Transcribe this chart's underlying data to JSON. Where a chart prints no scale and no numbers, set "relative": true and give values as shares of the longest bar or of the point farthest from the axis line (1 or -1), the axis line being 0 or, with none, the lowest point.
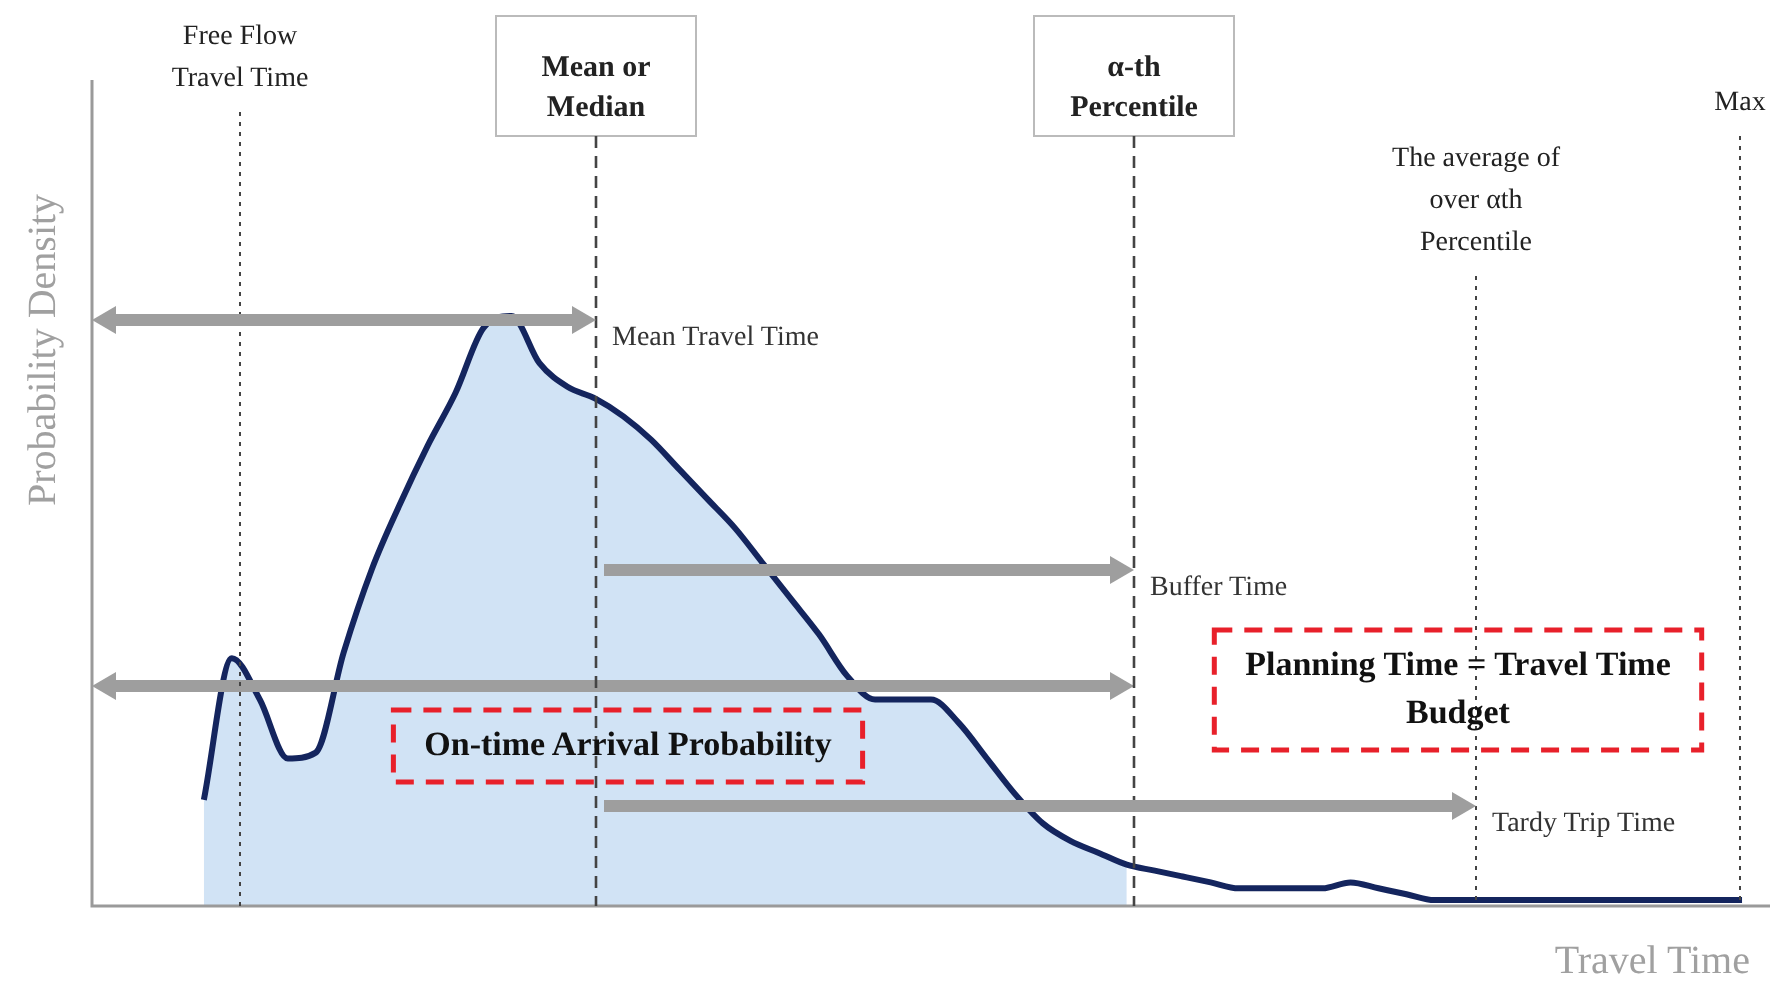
{
  "chart_data": {
    "type": "line",
    "relative": true,
    "xlabel": "Travel Time",
    "ylabel": "Probability Density",
    "categories": [
      null,
      null,
      null,
      null,
      null,
      null,
      null,
      null,
      null,
      null,
      null,
      null,
      null,
      null,
      null,
      null,
      null,
      null,
      null,
      null,
      null,
      null,
      null,
      null,
      null,
      null,
      null,
      null,
      null,
      null,
      null,
      null,
      null,
      null,
      null,
      null,
      null,
      null,
      null,
      null,
      null,
      null,
      null,
      null,
      null,
      null,
      null,
      null,
      null,
      null,
      null,
      null,
      null,
      null,
      null,
      null,
      null,
      null,
      null,
      null,
      null
    ],
    "series": [
      {
        "type": "area",
        "color": "#bcd6f0",
        "values": [
          null,
          null,
          null,
          null,
          0.18,
          0.42,
          0.35,
          0.25,
          0.26,
          0.43,
          0.57,
          0.68,
          0.78,
          0.87,
          0.98,
          1,
          0.92,
          0.88,
          0.86,
          0.83,
          0.79,
          0.74,
          0.69,
          0.64,
          0.58,
          0.52,
          0.46,
          0.39,
          0.35,
          0.35,
          0.35,
          0.31,
          0.25,
          0.19,
          0.14,
          0.11,
          0.09,
          0.07,
          null,
          null,
          null,
          null,
          null,
          null,
          null,
          null,
          null,
          null,
          null,
          null,
          null,
          null,
          null,
          null,
          null,
          null,
          null,
          null,
          null,
          null,
          null
        ]
      },
      {
        "color": "#14255e",
        "values": [
          null,
          null,
          null,
          null,
          0.18,
          0.42,
          0.35,
          0.25,
          0.26,
          0.43,
          0.57,
          0.68,
          0.78,
          0.87,
          0.98,
          1,
          0.92,
          0.88,
          0.86,
          0.83,
          0.79,
          0.74,
          0.69,
          0.64,
          0.58,
          0.52,
          0.46,
          0.39,
          0.35,
          0.35,
          0.35,
          0.31,
          0.25,
          0.19,
          0.14,
          0.11,
          0.09,
          0.07,
          0.06,
          0.05,
          0.04,
          0.03,
          0.03,
          0.03,
          0.03,
          0.04,
          0.03,
          0.02,
          0.01,
          0.01,
          0.01,
          0.01,
          0.01,
          0.01,
          0.01,
          0.01,
          0.01,
          0.01,
          0.01,
          0.01,
          null
        ]
      }
    ],
    "annotations": [
      "Free Flow Travel Time",
      "Mean or Median",
      "α-th Percentile",
      "The average of over αth Percentile",
      "Max",
      "Mean Travel Time",
      "Buffer Time",
      "Tardy Trip Time",
      "On-time Arrival Probability",
      "Planning Time = Travel Time Budget"
    ],
    "legend": false
  }
}
